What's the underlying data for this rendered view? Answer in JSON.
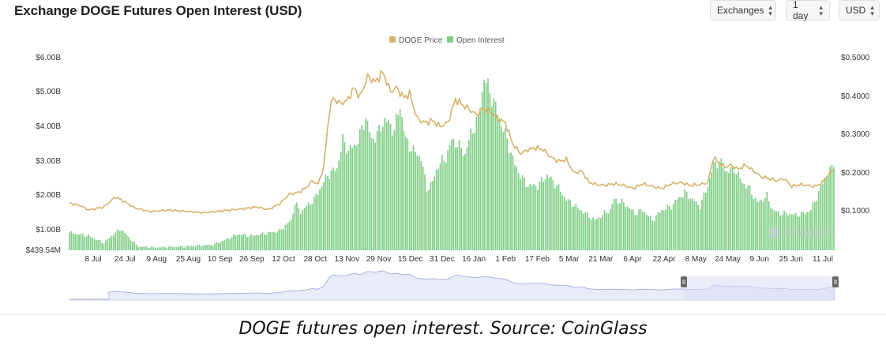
{
  "header": {
    "title": "Exchange DOGE Futures Open Interest (USD)",
    "exchanges_label": "Exchanges",
    "interval_label": "1 day",
    "currency_label": "USD"
  },
  "icons": {
    "dropdown": "chevron-up-down-icon",
    "handle": "grip-handle-icon"
  },
  "colors": {
    "price": "#d4b36a",
    "open_interest": "#7fcd85",
    "navigator": "#9aa6dc"
  },
  "watermark": "coinglass",
  "caption": "DOGE futures open interest. Source: CoinGlass",
  "chart_data": {
    "type": "bar+line",
    "legend": [
      "DOGE Price",
      "Open Interest"
    ],
    "legend_position": "top-center",
    "x_ticks": [
      "8 Jul",
      "24 Jul",
      "9 Aug",
      "25 Aug",
      "10 Sep",
      "26 Sep",
      "12 Oct",
      "28 Oct",
      "13 Nov",
      "29 Nov",
      "15 Dec",
      "31 Dec",
      "16 Jan",
      "1 Feb",
      "17 Feb",
      "5 Mar",
      "21 Mar",
      "6 Apr",
      "22 Apr",
      "8 May",
      "24 May",
      "9 Jun",
      "25 Jun",
      "11 Jul"
    ],
    "y_left_ticks": [
      "$6.00B",
      "$5.00B",
      "$4.00B",
      "$3.00B",
      "$2.00B",
      "$1.00B",
      "$439.54M"
    ],
    "y_right_ticks": [
      "$0.5000",
      "$0.4000",
      "$0.3000",
      "$0.2000",
      "$0.1000"
    ],
    "y_left_range": [
      0.43954,
      6.0
    ],
    "y_right_range": [
      0.0,
      0.5
    ],
    "grid": false,
    "open_interest_keyframes": [
      {
        "day": 0,
        "value": 0.95
      },
      {
        "day": 10,
        "value": 0.85
      },
      {
        "day": 18,
        "value": 0.65
      },
      {
        "day": 24,
        "value": 0.95
      },
      {
        "day": 27,
        "value": 1.05
      },
      {
        "day": 32,
        "value": 0.75
      },
      {
        "day": 36,
        "value": 0.55
      },
      {
        "day": 45,
        "value": 0.52
      },
      {
        "day": 60,
        "value": 0.55
      },
      {
        "day": 75,
        "value": 0.6
      },
      {
        "day": 82,
        "value": 0.75
      },
      {
        "day": 88,
        "value": 0.9
      },
      {
        "day": 95,
        "value": 0.85
      },
      {
        "day": 105,
        "value": 0.95
      },
      {
        "day": 110,
        "value": 1.0
      },
      {
        "day": 116,
        "value": 1.3
      },
      {
        "day": 118,
        "value": 1.8
      },
      {
        "day": 121,
        "value": 1.55
      },
      {
        "day": 128,
        "value": 1.9
      },
      {
        "day": 135,
        "value": 2.6
      },
      {
        "day": 140,
        "value": 2.8
      },
      {
        "day": 143,
        "value": 3.6
      },
      {
        "day": 146,
        "value": 3.3
      },
      {
        "day": 150,
        "value": 3.5
      },
      {
        "day": 153,
        "value": 3.9
      },
      {
        "day": 155,
        "value": 4.3
      },
      {
        "day": 158,
        "value": 3.6
      },
      {
        "day": 162,
        "value": 3.85
      },
      {
        "day": 165,
        "value": 4.2
      },
      {
        "day": 170,
        "value": 3.9
      },
      {
        "day": 173,
        "value": 4.6
      },
      {
        "day": 176,
        "value": 3.6
      },
      {
        "day": 180,
        "value": 3.3
      },
      {
        "day": 184,
        "value": 3.1
      },
      {
        "day": 187,
        "value": 2.2
      },
      {
        "day": 190,
        "value": 2.4
      },
      {
        "day": 193,
        "value": 2.9
      },
      {
        "day": 197,
        "value": 3.1
      },
      {
        "day": 200,
        "value": 3.6
      },
      {
        "day": 203,
        "value": 3.5
      },
      {
        "day": 207,
        "value": 3.2
      },
      {
        "day": 210,
        "value": 3.8
      },
      {
        "day": 214,
        "value": 4.2
      },
      {
        "day": 217,
        "value": 5.4
      },
      {
        "day": 220,
        "value": 5.0
      },
      {
        "day": 224,
        "value": 4.4
      },
      {
        "day": 229,
        "value": 3.6
      },
      {
        "day": 233,
        "value": 2.9
      },
      {
        "day": 237,
        "value": 2.5
      },
      {
        "day": 240,
        "value": 2.3
      },
      {
        "day": 245,
        "value": 2.3
      },
      {
        "day": 250,
        "value": 2.6
      },
      {
        "day": 255,
        "value": 2.3
      },
      {
        "day": 260,
        "value": 1.9
      },
      {
        "day": 265,
        "value": 1.7
      },
      {
        "day": 270,
        "value": 1.5
      },
      {
        "day": 275,
        "value": 1.3
      },
      {
        "day": 280,
        "value": 1.5
      },
      {
        "day": 283,
        "value": 1.6
      },
      {
        "day": 285,
        "value": 1.9
      },
      {
        "day": 290,
        "value": 1.8
      },
      {
        "day": 296,
        "value": 1.5
      },
      {
        "day": 300,
        "value": 1.6
      },
      {
        "day": 305,
        "value": 1.3
      },
      {
        "day": 310,
        "value": 1.6
      },
      {
        "day": 315,
        "value": 1.7
      },
      {
        "day": 318,
        "value": 1.9
      },
      {
        "day": 322,
        "value": 2.1
      },
      {
        "day": 326,
        "value": 1.9
      },
      {
        "day": 330,
        "value": 1.7
      },
      {
        "day": 334,
        "value": 2.3
      },
      {
        "day": 337,
        "value": 2.9
      },
      {
        "day": 340,
        "value": 3.0
      },
      {
        "day": 344,
        "value": 2.7
      },
      {
        "day": 348,
        "value": 2.8
      },
      {
        "day": 352,
        "value": 2.4
      },
      {
        "day": 356,
        "value": 2.2
      },
      {
        "day": 360,
        "value": 1.8
      },
      {
        "day": 365,
        "value": 2.0
      },
      {
        "day": 368,
        "value": 1.6
      },
      {
        "day": 372,
        "value": 1.5
      },
      {
        "day": 376,
        "value": 1.5
      },
      {
        "day": 380,
        "value": 1.45
      },
      {
        "day": 384,
        "value": 1.5
      },
      {
        "day": 388,
        "value": 1.6
      },
      {
        "day": 392,
        "value": 2.1
      },
      {
        "day": 395,
        "value": 2.5
      },
      {
        "day": 398,
        "value": 2.7
      },
      {
        "day": 400,
        "value": 3.0
      }
    ],
    "doge_price_keyframes": [
      {
        "day": 0,
        "value": 0.122
      },
      {
        "day": 6,
        "value": 0.115
      },
      {
        "day": 10,
        "value": 0.104
      },
      {
        "day": 18,
        "value": 0.112
      },
      {
        "day": 24,
        "value": 0.138
      },
      {
        "day": 28,
        "value": 0.128
      },
      {
        "day": 34,
        "value": 0.11
      },
      {
        "day": 42,
        "value": 0.1
      },
      {
        "day": 52,
        "value": 0.104
      },
      {
        "day": 60,
        "value": 0.101
      },
      {
        "day": 70,
        "value": 0.097
      },
      {
        "day": 80,
        "value": 0.102
      },
      {
        "day": 90,
        "value": 0.107
      },
      {
        "day": 98,
        "value": 0.112
      },
      {
        "day": 104,
        "value": 0.105
      },
      {
        "day": 110,
        "value": 0.12
      },
      {
        "day": 115,
        "value": 0.145
      },
      {
        "day": 120,
        "value": 0.15
      },
      {
        "day": 124,
        "value": 0.162
      },
      {
        "day": 127,
        "value": 0.18
      },
      {
        "day": 130,
        "value": 0.17
      },
      {
        "day": 133,
        "value": 0.215
      },
      {
        "day": 136,
        "value": 0.36
      },
      {
        "day": 138,
        "value": 0.395
      },
      {
        "day": 141,
        "value": 0.38
      },
      {
        "day": 145,
        "value": 0.385
      },
      {
        "day": 149,
        "value": 0.42
      },
      {
        "day": 152,
        "value": 0.395
      },
      {
        "day": 156,
        "value": 0.45
      },
      {
        "day": 160,
        "value": 0.435
      },
      {
        "day": 164,
        "value": 0.46
      },
      {
        "day": 168,
        "value": 0.41
      },
      {
        "day": 171,
        "value": 0.42
      },
      {
        "day": 175,
        "value": 0.395
      },
      {
        "day": 178,
        "value": 0.405
      },
      {
        "day": 182,
        "value": 0.34
      },
      {
        "day": 186,
        "value": 0.33
      },
      {
        "day": 190,
        "value": 0.335
      },
      {
        "day": 194,
        "value": 0.32
      },
      {
        "day": 198,
        "value": 0.33
      },
      {
        "day": 202,
        "value": 0.39
      },
      {
        "day": 206,
        "value": 0.375
      },
      {
        "day": 209,
        "value": 0.365
      },
      {
        "day": 213,
        "value": 0.35
      },
      {
        "day": 216,
        "value": 0.365
      },
      {
        "day": 220,
        "value": 0.36
      },
      {
        "day": 224,
        "value": 0.34
      },
      {
        "day": 228,
        "value": 0.33
      },
      {
        "day": 232,
        "value": 0.275
      },
      {
        "day": 236,
        "value": 0.25
      },
      {
        "day": 240,
        "value": 0.26
      },
      {
        "day": 244,
        "value": 0.265
      },
      {
        "day": 248,
        "value": 0.26
      },
      {
        "day": 252,
        "value": 0.24
      },
      {
        "day": 256,
        "value": 0.23
      },
      {
        "day": 260,
        "value": 0.235
      },
      {
        "day": 264,
        "value": 0.2
      },
      {
        "day": 268,
        "value": 0.205
      },
      {
        "day": 272,
        "value": 0.175
      },
      {
        "day": 276,
        "value": 0.17
      },
      {
        "day": 280,
        "value": 0.168
      },
      {
        "day": 285,
        "value": 0.172
      },
      {
        "day": 290,
        "value": 0.168
      },
      {
        "day": 295,
        "value": 0.16
      },
      {
        "day": 300,
        "value": 0.172
      },
      {
        "day": 305,
        "value": 0.165
      },
      {
        "day": 310,
        "value": 0.16
      },
      {
        "day": 315,
        "value": 0.172
      },
      {
        "day": 320,
        "value": 0.175
      },
      {
        "day": 325,
        "value": 0.168
      },
      {
        "day": 330,
        "value": 0.17
      },
      {
        "day": 334,
        "value": 0.175
      },
      {
        "day": 337,
        "value": 0.24
      },
      {
        "day": 340,
        "value": 0.225
      },
      {
        "day": 343,
        "value": 0.215
      },
      {
        "day": 346,
        "value": 0.22
      },
      {
        "day": 350,
        "value": 0.21
      },
      {
        "day": 354,
        "value": 0.22
      },
      {
        "day": 358,
        "value": 0.205
      },
      {
        "day": 362,
        "value": 0.19
      },
      {
        "day": 366,
        "value": 0.185
      },
      {
        "day": 370,
        "value": 0.18
      },
      {
        "day": 374,
        "value": 0.185
      },
      {
        "day": 378,
        "value": 0.165
      },
      {
        "day": 382,
        "value": 0.17
      },
      {
        "day": 386,
        "value": 0.168
      },
      {
        "day": 390,
        "value": 0.165
      },
      {
        "day": 394,
        "value": 0.175
      },
      {
        "day": 397,
        "value": 0.195
      },
      {
        "day": 400,
        "value": 0.21
      }
    ]
  }
}
